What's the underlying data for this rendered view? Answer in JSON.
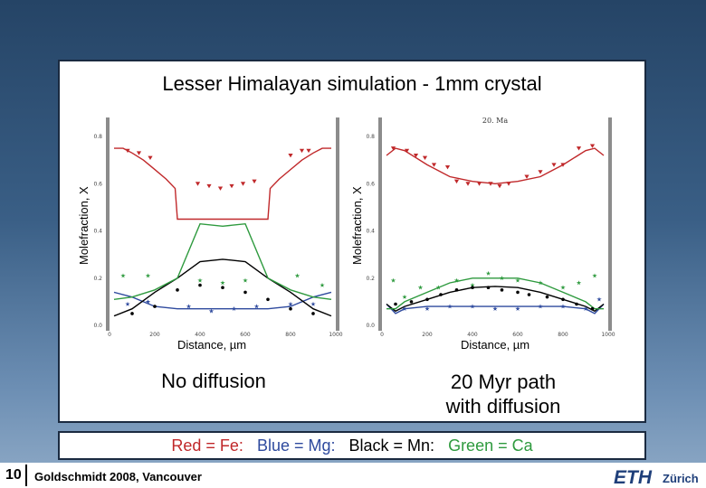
{
  "title": "Lesser Himalayan simulation - 1mm crystal",
  "left_caption": "No diffusion",
  "right_caption": "20 Myr path with diffusion",
  "right_caption_lines": [
    "20 Myr path",
    "with diffusion"
  ],
  "legend": {
    "red": "Red = Fe:",
    "blue": "Blue = Mg:",
    "black": "Black = Mn:",
    "green": "Green = Ca"
  },
  "footer": {
    "page": "10",
    "conference": "Goldschmidt 2008, Vancouver",
    "logo": "ETH",
    "logo_city": "Zürich"
  },
  "colors": {
    "fe": "#c0282a",
    "mg": "#2e4a9e",
    "mn": "#000000",
    "ca": "#2e9a3e"
  },
  "chart_data": [
    {
      "type": "line",
      "name": "No diffusion",
      "title": "",
      "xlabel": "Distance, µm",
      "ylabel": "Molefraction, X",
      "xlim": [
        0,
        1000
      ],
      "ylim": [
        0,
        0.85
      ],
      "x_ticks": [
        "0",
        "200",
        "400",
        "600",
        "800",
        "1000"
      ],
      "y_ticks": [
        "0.0",
        "0.2",
        "0.4",
        "0.6",
        "0.8"
      ],
      "series": [
        {
          "name": "Fe",
          "x": [
            20,
            60,
            100,
            150,
            200,
            250,
            290,
            300,
            700,
            710,
            750,
            800,
            850,
            900,
            940,
            980
          ],
          "y": [
            0.75,
            0.75,
            0.73,
            0.7,
            0.66,
            0.62,
            0.58,
            0.45,
            0.45,
            0.58,
            0.62,
            0.66,
            0.7,
            0.73,
            0.75,
            0.75
          ]
        },
        {
          "name": "Mg",
          "x": [
            20,
            100,
            200,
            300,
            400,
            500,
            600,
            700,
            800,
            900,
            980
          ],
          "y": [
            0.14,
            0.12,
            0.08,
            0.07,
            0.07,
            0.07,
            0.07,
            0.07,
            0.08,
            0.12,
            0.14
          ]
        },
        {
          "name": "Mn",
          "x": [
            20,
            100,
            200,
            300,
            400,
            500,
            600,
            700,
            800,
            900,
            980
          ],
          "y": [
            0.04,
            0.07,
            0.14,
            0.2,
            0.27,
            0.28,
            0.27,
            0.2,
            0.14,
            0.07,
            0.04
          ]
        },
        {
          "name": "Ca",
          "x": [
            20,
            100,
            200,
            300,
            400,
            500,
            600,
            700,
            800,
            900,
            980
          ],
          "y": [
            0.11,
            0.12,
            0.15,
            0.2,
            0.43,
            0.42,
            0.43,
            0.2,
            0.15,
            0.12,
            0.11
          ]
        }
      ],
      "points": [
        {
          "name": "Fe",
          "x": [
            80,
            130,
            180,
            390,
            440,
            490,
            540,
            590,
            640,
            800,
            850,
            880
          ],
          "y": [
            0.74,
            0.73,
            0.71,
            0.6,
            0.59,
            0.58,
            0.59,
            0.6,
            0.61,
            0.72,
            0.74,
            0.74
          ]
        },
        {
          "name": "Ca",
          "x": [
            60,
            170,
            400,
            500,
            600,
            830,
            940
          ],
          "y": [
            0.21,
            0.21,
            0.19,
            0.18,
            0.19,
            0.21,
            0.17
          ]
        },
        {
          "name": "Mg",
          "x": [
            80,
            170,
            350,
            450,
            550,
            650,
            800,
            900
          ],
          "y": [
            0.09,
            0.1,
            0.08,
            0.06,
            0.07,
            0.08,
            0.09,
            0.09
          ]
        },
        {
          "name": "Mn",
          "x": [
            100,
            200,
            300,
            400,
            500,
            600,
            700,
            800,
            900
          ],
          "y": [
            0.05,
            0.08,
            0.15,
            0.17,
            0.16,
            0.14,
            0.11,
            0.07,
            0.05
          ]
        }
      ]
    },
    {
      "type": "line",
      "name": "20 Myr path with diffusion",
      "title": "20. Ma",
      "xlabel": "Distance, µm",
      "ylabel": "Molefraction, X",
      "xlim": [
        0,
        1000
      ],
      "ylim": [
        0,
        0.85
      ],
      "x_ticks": [
        "0",
        "200",
        "400",
        "600",
        "800",
        "1000"
      ],
      "y_ticks": [
        "0.0",
        "0.2",
        "0.4",
        "0.6",
        "0.8"
      ],
      "series": [
        {
          "name": "Fe",
          "x": [
            20,
            60,
            100,
            200,
            300,
            400,
            500,
            600,
            700,
            800,
            900,
            940,
            980
          ],
          "y": [
            0.72,
            0.75,
            0.74,
            0.68,
            0.63,
            0.61,
            0.6,
            0.61,
            0.63,
            0.68,
            0.74,
            0.75,
            0.72
          ]
        },
        {
          "name": "Mg",
          "x": [
            20,
            60,
            100,
            200,
            300,
            400,
            500,
            600,
            700,
            800,
            900,
            940,
            980
          ],
          "y": [
            0.09,
            0.05,
            0.07,
            0.08,
            0.08,
            0.08,
            0.08,
            0.08,
            0.08,
            0.08,
            0.07,
            0.05,
            0.09
          ]
        },
        {
          "name": "Mn",
          "x": [
            20,
            60,
            100,
            200,
            300,
            400,
            500,
            600,
            700,
            800,
            900,
            940,
            980
          ],
          "y": [
            0.09,
            0.06,
            0.08,
            0.11,
            0.14,
            0.16,
            0.165,
            0.16,
            0.14,
            0.11,
            0.08,
            0.06,
            0.09
          ]
        },
        {
          "name": "Ca",
          "x": [
            20,
            60,
            100,
            200,
            300,
            400,
            500,
            600,
            700,
            800,
            900,
            940,
            980
          ],
          "y": [
            0.07,
            0.07,
            0.1,
            0.14,
            0.18,
            0.2,
            0.2,
            0.2,
            0.18,
            0.14,
            0.1,
            0.07,
            0.07
          ]
        }
      ],
      "points": [
        {
          "name": "Fe",
          "x": [
            50,
            110,
            150,
            190,
            230,
            290,
            330,
            380,
            430,
            480,
            520,
            560,
            640,
            700,
            760,
            800,
            870,
            930
          ],
          "y": [
            0.75,
            0.74,
            0.72,
            0.71,
            0.68,
            0.67,
            0.61,
            0.6,
            0.6,
            0.6,
            0.59,
            0.6,
            0.63,
            0.65,
            0.68,
            0.68,
            0.75,
            0.76
          ]
        },
        {
          "name": "Ca",
          "x": [
            50,
            100,
            170,
            250,
            330,
            400,
            470,
            530,
            600,
            700,
            800,
            870,
            940
          ],
          "y": [
            0.19,
            0.12,
            0.16,
            0.16,
            0.19,
            0.17,
            0.22,
            0.2,
            0.19,
            0.18,
            0.16,
            0.18,
            0.21
          ]
        },
        {
          "name": "Mn",
          "x": [
            60,
            130,
            200,
            260,
            330,
            400,
            470,
            530,
            600,
            650,
            730,
            800,
            860,
            930
          ],
          "y": [
            0.09,
            0.1,
            0.11,
            0.13,
            0.15,
            0.16,
            0.16,
            0.15,
            0.14,
            0.13,
            0.12,
            0.11,
            0.09,
            0.07
          ]
        },
        {
          "name": "Mg",
          "x": [
            100,
            200,
            300,
            400,
            500,
            600,
            700,
            800,
            900,
            960
          ],
          "y": [
            0.07,
            0.07,
            0.08,
            0.08,
            0.07,
            0.07,
            0.08,
            0.08,
            0.07,
            0.11
          ]
        }
      ]
    }
  ]
}
